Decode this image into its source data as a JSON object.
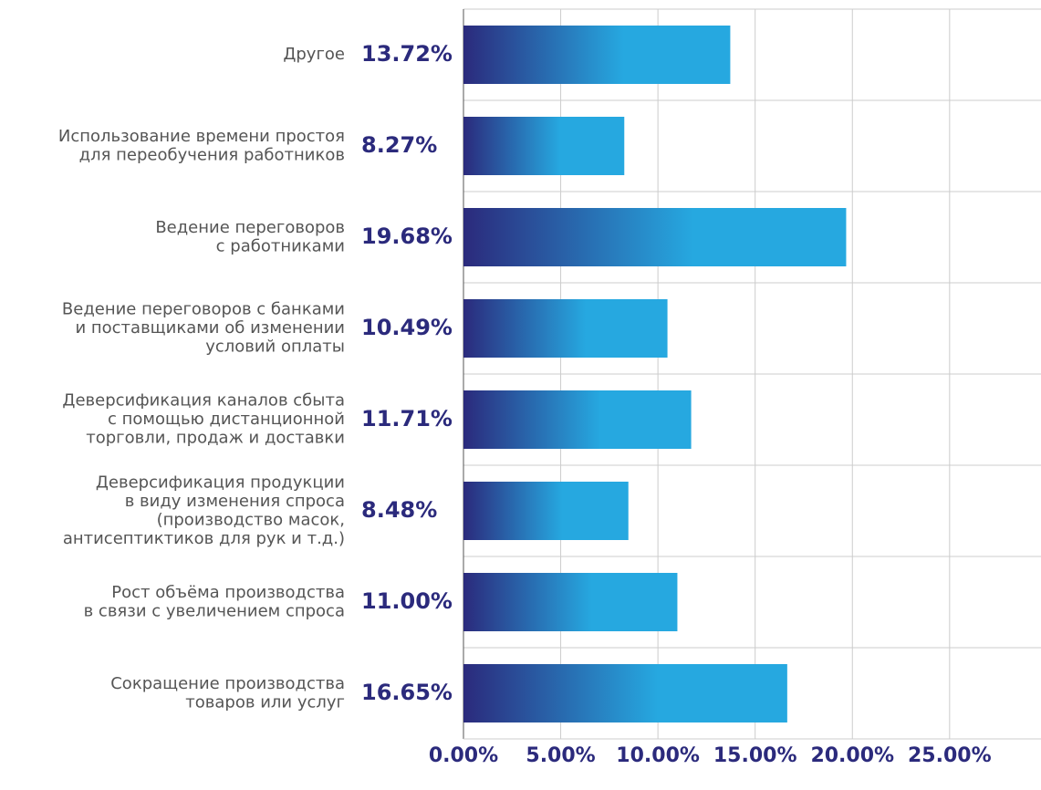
{
  "chart_data": {
    "type": "barh",
    "categories": [
      [
        "Другое"
      ],
      [
        "Использование времени простоя",
        "для переобучения работников"
      ],
      [
        "Ведение переговоров",
        "с работниками"
      ],
      [
        "Ведение переговоров с банками",
        "и поставщиками об изменении",
        "условий оплаты"
      ],
      [
        "Деверсификация каналов сбыта",
        "с помощью дистанционной",
        "торговли, продаж и доставки"
      ],
      [
        "Деверсификация продукции",
        "в виду изменения спроса",
        "(производство масок,",
        "антисептиктиков для рук и т.д.)"
      ],
      [
        "Рост объёма производства",
        "в связи с увеличением спроса"
      ],
      [
        "Сокращение производства",
        "товаров или услуг"
      ]
    ],
    "values": [
      13.72,
      8.27,
      19.68,
      10.49,
      11.71,
      8.48,
      11.0,
      16.65
    ],
    "value_labels": [
      "13.72%",
      "8.27%",
      "19.68%",
      "10.49%",
      "11.71%",
      "8.48%",
      "11.00%",
      "16.65%"
    ],
    "colors": [
      "#2b2a7c",
      "#26a8e0"
    ],
    "xlim": [
      0,
      29.7
    ],
    "xticks": [
      {
        "value": 0,
        "label": "0.00%"
      },
      {
        "value": 5,
        "label": "5.00%"
      },
      {
        "value": 10,
        "label": "10.00%"
      },
      {
        "value": 15,
        "label": "15.00%"
      },
      {
        "value": 20,
        "label": "20.00%"
      },
      {
        "value": 25,
        "label": "25.00%"
      }
    ],
    "grid": true
  }
}
